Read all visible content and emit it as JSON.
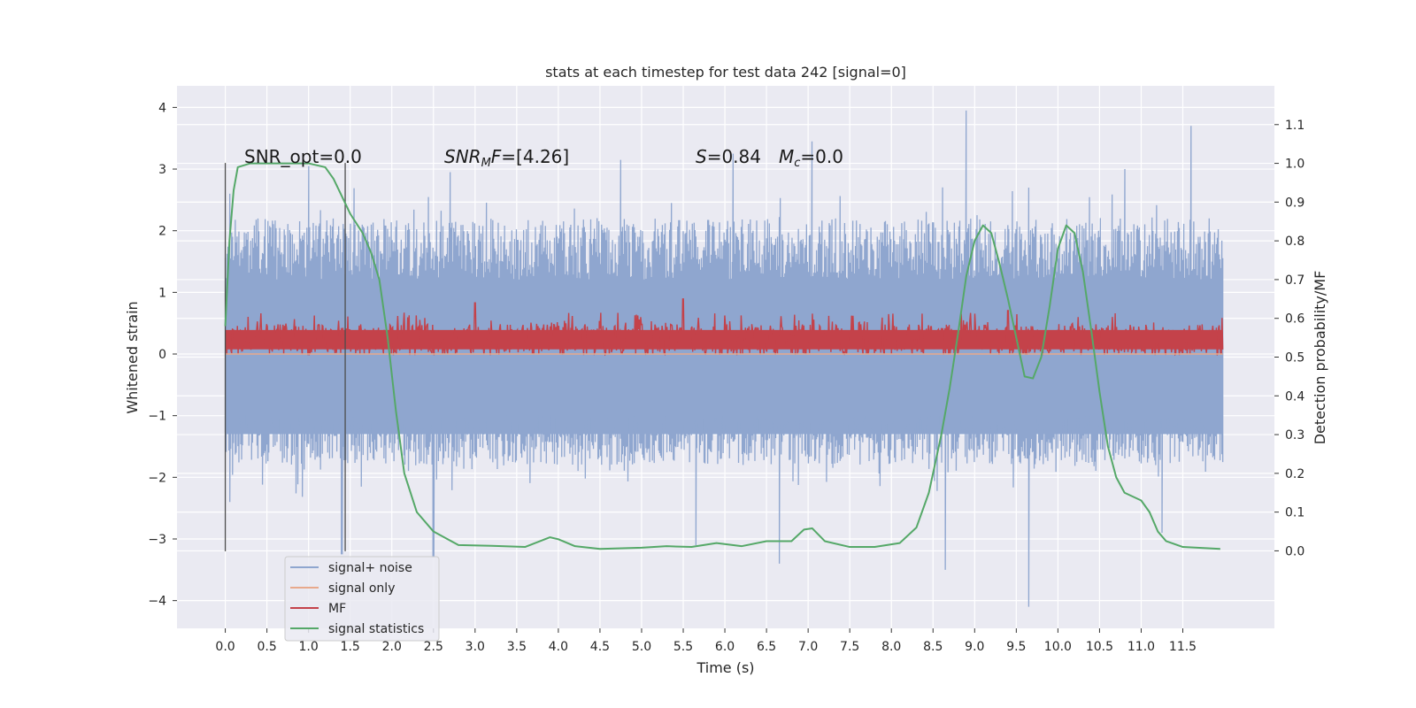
{
  "chart_data": {
    "type": "line",
    "title": "stats at each timestep for test data 242 [signal=0]",
    "xlabel": "Time (s)",
    "ylabel_left": "Whitened strain",
    "ylabel_right": "Detection probability/MF",
    "xlim": [
      -0.58,
      12.6
    ],
    "ylim_left": [
      -4.45,
      4.35
    ],
    "ylim_right": [
      -0.2,
      1.2
    ],
    "x_ticks": [
      0.0,
      0.5,
      1.0,
      1.5,
      2.0,
      2.5,
      3.0,
      3.5,
      4.0,
      4.5,
      5.0,
      5.5,
      6.0,
      6.5,
      7.0,
      7.5,
      8.0,
      8.5,
      9.0,
      9.5,
      10.0,
      10.5,
      11.0,
      11.5
    ],
    "x_tick_labels": [
      "0.0",
      "0.5",
      "1.0",
      "1.5",
      "2.0",
      "2.5",
      "3.0",
      "3.5",
      "4.0",
      "4.5",
      "5.0",
      "5.5",
      "6.0",
      "6.5",
      "7.0",
      "7.5",
      "8.0",
      "8.5",
      "9.0",
      "9.5",
      "10.0",
      "10.5",
      "11.0",
      "11.5"
    ],
    "y_left_ticks": [
      -4,
      -3,
      -2,
      -1,
      0,
      1,
      2,
      3,
      4
    ],
    "y_left_tick_labels": [
      "−4",
      "−3",
      "−2",
      "−1",
      "0",
      "1",
      "2",
      "3",
      "4"
    ],
    "y_right_ticks": [
      0.0,
      0.1,
      0.2,
      0.3,
      0.4,
      0.5,
      0.6,
      0.7,
      0.8,
      0.9,
      1.0,
      1.1
    ],
    "y_right_tick_labels": [
      "0.0",
      "0.1",
      "0.2",
      "0.3",
      "0.4",
      "0.5",
      "0.6",
      "0.7",
      "0.8",
      "0.9",
      "1.0",
      "1.1"
    ],
    "annotations": [
      "SNR_opt=0.0",
      "SNR_MF=[4.26]",
      "S=0.84",
      "M_c=0.0"
    ],
    "vlines": [
      {
        "x": 0.0,
        "ymin": -3.2,
        "ymax": 3.1
      },
      {
        "x": 1.44,
        "ymin": -3.2,
        "ymax": 3.1
      }
    ],
    "series": [
      {
        "name": "signal+ noise",
        "axis": "left",
        "color": "#8fa6cf",
        "x_range": [
          0.0,
          11.98
        ],
        "envelope_typical": [
          -1.8,
          2.2
        ],
        "peaks": [
          [
            0.05,
            2.6
          ],
          [
            1.0,
            3.05
          ],
          [
            2.7,
            2.95
          ],
          [
            4.75,
            3.15
          ],
          [
            6.1,
            3.25
          ],
          [
            7.05,
            3.45
          ],
          [
            8.9,
            3.95
          ],
          [
            9.65,
            2.7
          ],
          [
            10.8,
            3.0
          ],
          [
            11.6,
            3.7
          ]
        ],
        "troughs": [
          [
            0.05,
            -2.4
          ],
          [
            1.4,
            -3.25
          ],
          [
            2.5,
            -3.3
          ],
          [
            5.65,
            -3.1
          ],
          [
            6.65,
            -3.4
          ],
          [
            8.65,
            -3.5
          ],
          [
            9.65,
            -4.1
          ],
          [
            11.25,
            -2.9
          ]
        ]
      },
      {
        "name": "signal only",
        "axis": "left",
        "color": "#e8a98c",
        "x_range": [
          0.0,
          11.98
        ],
        "values_constant": 0.0
      },
      {
        "name": "MF",
        "axis": "right",
        "color": "#c4424a",
        "x_range": [
          0.0,
          11.98
        ],
        "band": [
          0.505,
          0.585
        ],
        "max_spikes": [
          [
            3.0,
            0.64
          ],
          [
            5.5,
            0.65
          ],
          [
            9.4,
            0.62
          ]
        ]
      },
      {
        "name": "signal statistics",
        "axis": "right",
        "color": "#55a868",
        "x": [
          0.0,
          0.05,
          0.1,
          0.15,
          0.3,
          0.5,
          0.8,
          1.0,
          1.2,
          1.3,
          1.5,
          1.65,
          1.75,
          1.85,
          1.95,
          2.05,
          2.15,
          2.3,
          2.5,
          2.8,
          3.2,
          3.6,
          3.9,
          4.0,
          4.2,
          4.5,
          5.0,
          5.3,
          5.6,
          5.9,
          6.2,
          6.5,
          6.8,
          6.95,
          7.05,
          7.2,
          7.5,
          7.8,
          8.1,
          8.3,
          8.45,
          8.6,
          8.7,
          8.8,
          8.9,
          9.0,
          9.1,
          9.2,
          9.3,
          9.4,
          9.5,
          9.6,
          9.7,
          9.8,
          9.9,
          10.0,
          10.1,
          10.2,
          10.3,
          10.4,
          10.5,
          10.6,
          10.7,
          10.8,
          10.9,
          11.0,
          11.1,
          11.2,
          11.3,
          11.5,
          11.95
        ],
        "y": [
          0.58,
          0.8,
          0.93,
          0.99,
          1.0,
          1.0,
          1.0,
          1.0,
          0.99,
          0.96,
          0.87,
          0.82,
          0.77,
          0.7,
          0.55,
          0.36,
          0.2,
          0.1,
          0.05,
          0.015,
          0.013,
          0.01,
          0.035,
          0.03,
          0.012,
          0.005,
          0.008,
          0.012,
          0.01,
          0.02,
          0.012,
          0.025,
          0.025,
          0.055,
          0.058,
          0.025,
          0.01,
          0.01,
          0.02,
          0.06,
          0.15,
          0.3,
          0.42,
          0.56,
          0.71,
          0.8,
          0.84,
          0.82,
          0.74,
          0.65,
          0.55,
          0.45,
          0.445,
          0.5,
          0.63,
          0.78,
          0.84,
          0.82,
          0.72,
          0.57,
          0.41,
          0.27,
          0.19,
          0.15,
          0.14,
          0.13,
          0.1,
          0.05,
          0.025,
          0.01,
          0.005
        ]
      }
    ],
    "legend_position": "lower-left",
    "grid": true
  }
}
